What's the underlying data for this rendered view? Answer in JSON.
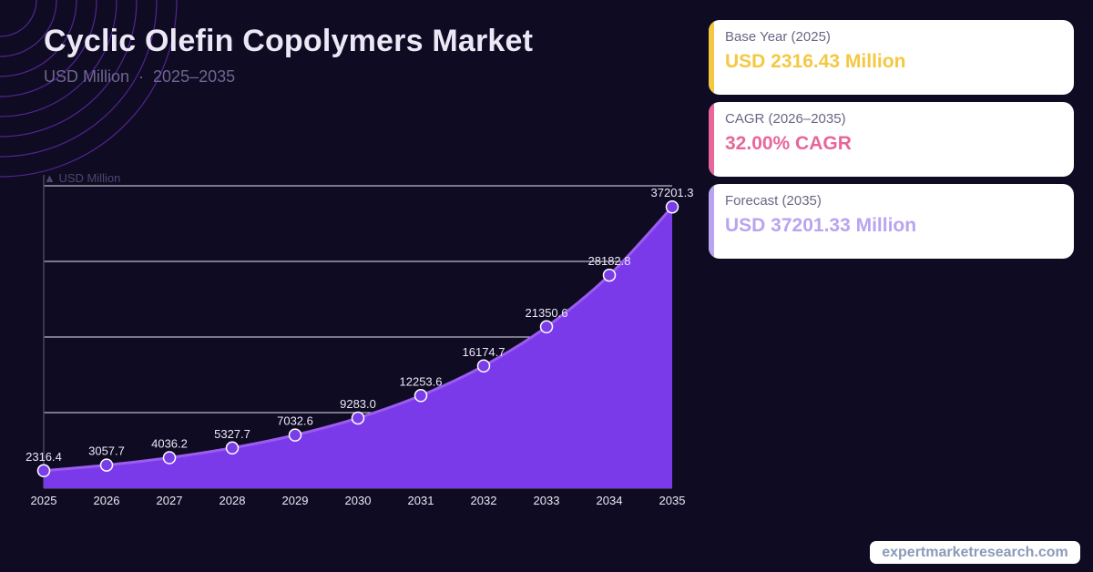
{
  "title": "Cyclic Olefin Copolymers Market",
  "subtitle": {
    "unit": "USD Million",
    "separator": "·",
    "period": "2025–2035"
  },
  "colors": {
    "background": "#0f0b22",
    "area": "#7b3aea",
    "line": "#9b5cf0",
    "point": "#7a3ee8",
    "base_accent": "#f5c842",
    "cagr_accent": "#e8669a",
    "forecast_accent": "#b9a4f0"
  },
  "cards": [
    {
      "label": "Base Year (2025)",
      "value": "USD 2316.43 Million",
      "accent": "#f5c842"
    },
    {
      "label": "CAGR (2026–2035)",
      "value": "32.00% CAGR",
      "accent": "#e8669a"
    },
    {
      "label": "Forecast (2035)",
      "value": "USD 37201.33 Million",
      "accent": "#b9a4f0"
    }
  ],
  "chart_data": {
    "type": "area",
    "title": "Cyclic Olefin Copolymers Market",
    "ylabel": "▲ USD Million",
    "xlabel": "",
    "x": [
      "2025",
      "2026",
      "2027",
      "2028",
      "2029",
      "2030",
      "2031",
      "2032",
      "2033",
      "2034",
      "2035"
    ],
    "values": [
      2316.4,
      3057.7,
      4036.2,
      5327.7,
      7032.6,
      9283.0,
      12253.6,
      16174.7,
      21350.6,
      28182.8,
      37201.3
    ],
    "labels": [
      "2316.4",
      "3057.7",
      "4036.2",
      "5327.7",
      "7032.6",
      "9283.0",
      "12253.6",
      "16174.7",
      "21350.6",
      "28182.8",
      "37201.3"
    ],
    "ylim": [
      0,
      40000
    ],
    "gridlines": [
      10000,
      20000,
      30000,
      40000
    ],
    "grid": true
  },
  "brand": "expertmarketresearch.com"
}
